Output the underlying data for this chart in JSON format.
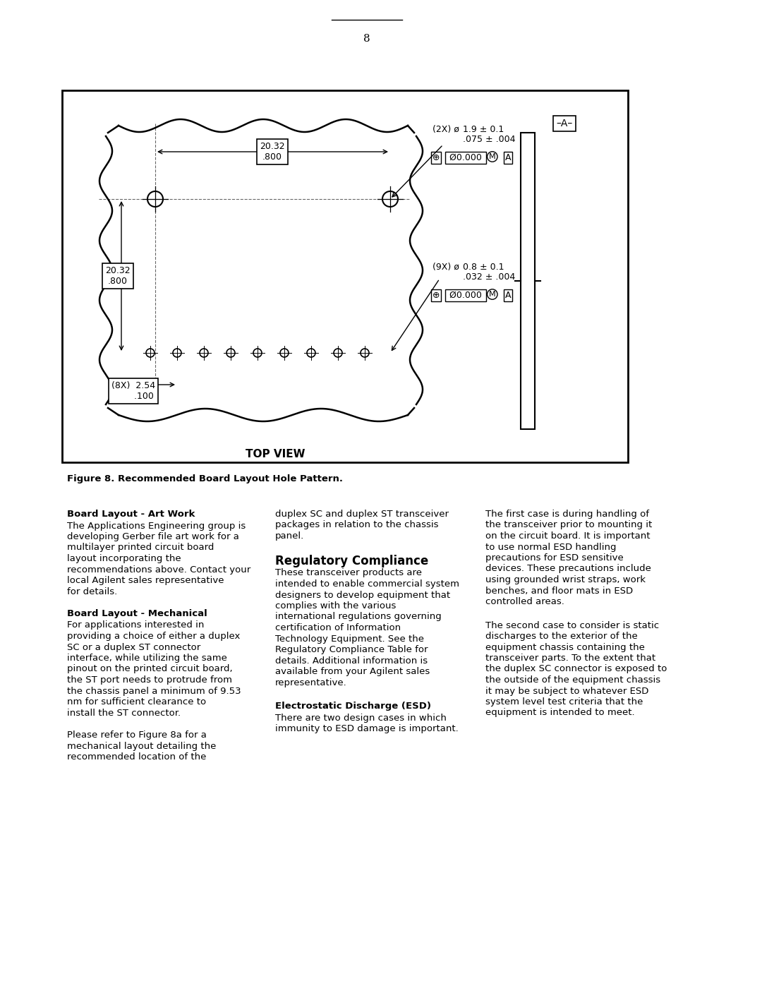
{
  "page_number": "8",
  "background_color": "#ffffff",
  "figure_caption": "Figure 8. Recommended Board Layout Hole Pattern.",
  "col1_heading1": "Board Layout - Art Work",
  "col1_text1": "The Applications Engineering group is developing Gerber file art work for a multilayer printed circuit board layout incorporating the recommendations above. Contact your local Agilent sales representative for details.",
  "col1_heading2": "Board Layout - Mechanical",
  "col1_text2": "For applications interested in providing a choice of either a duplex SC or a duplex ST connector interface, while utilizing the same pinout on the printed circuit board, the ST port needs to protrude from the chassis panel a minimum of 9.53 nm for sufficient clearance to install the ST connector.",
  "col1_text3": "Please refer to Figure 8a for a mechanical layout detailing the recommended location of the",
  "col2_text1": "duplex SC and duplex ST transceiver packages in relation to the chassis panel.",
  "col2_heading1": "Regulatory Compliance",
  "col2_text2": "These transceiver products are intended to enable commercial system designers to develop equipment that complies with the various international regulations governing certification of Information Technology Equipment. See the Regulatory Compliance Table for details. Additional information is available from your Agilent sales representative.",
  "col2_heading2": "Electrostatic Discharge (ESD)",
  "col2_text3": "There are two design cases in which immunity to ESD damage is important.",
  "col3_text1": "The first case is during handling of the transceiver prior to mounting it on the circuit board. It is important to use normal ESD handling precautions for ESD sensitive devices. These precautions include using grounded wrist straps, work benches, and floor mats in ESD controlled areas.",
  "col3_text2": "The second case to consider is static discharges to the exterior of the equipment chassis containing the transceiver parts. To the extent that the duplex SC connector is exposed to the outside of the equipment chassis it may be subject to whatever ESD system level test criteria that the equipment is intended to meet."
}
